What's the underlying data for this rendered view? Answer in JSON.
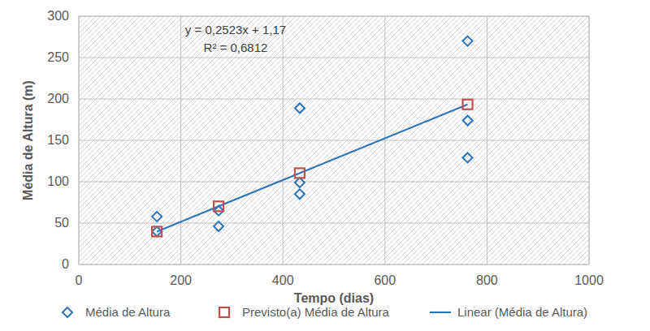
{
  "chart_data": {
    "type": "scatter",
    "x_label": "Tempo (dias)",
    "y_label": "Média de Altura (m)",
    "annotations": [
      "y = 0,2523x + 1,17",
      "R² = 0,6812"
    ],
    "series": [
      {
        "name": "Média de Altura",
        "color": "#2e75b6",
        "marker": "diamond",
        "x": [
          153,
          153,
          274,
          274,
          433,
          433,
          433,
          762,
          762,
          762
        ],
        "values": [
          58,
          40,
          65,
          46,
          189,
          99,
          85,
          270,
          174,
          129
        ]
      },
      {
        "name": "Previsto(a) Média de Altura",
        "color": "#c0504d",
        "marker": "square",
        "x": [
          153,
          274,
          433,
          762
        ],
        "values": [
          39.8,
          70.3,
          110.4,
          193.4
        ]
      },
      {
        "name": "Linear (Média de Altura)",
        "color": "#2e75b6",
        "type": "line",
        "line_style": "solid",
        "x": [
          153,
          762
        ],
        "values": [
          39.8,
          193.4
        ]
      }
    ],
    "xlim": [
      0,
      1000
    ],
    "xticks": [
      0,
      200,
      400,
      600,
      800,
      1000
    ],
    "ylim": [
      0,
      300
    ],
    "yticks": [
      0,
      50,
      100,
      150,
      200,
      250,
      300
    ],
    "grid": true,
    "legend": "bottom"
  }
}
